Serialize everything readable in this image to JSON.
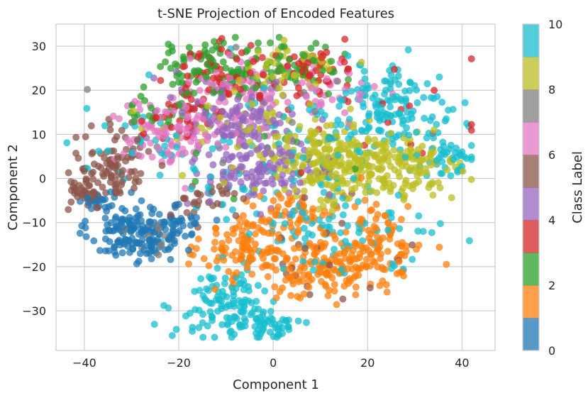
{
  "chart_data": {
    "type": "scatter",
    "title": "t-SNE Projection of Encoded Features",
    "xlabel": "Component 1",
    "ylabel": "Component 2",
    "xlim": [
      -46,
      47
    ],
    "ylim": [
      -39,
      35
    ],
    "xticks": [
      -40,
      -20,
      0,
      20,
      40
    ],
    "yticks": [
      -30,
      -20,
      -10,
      0,
      10,
      20,
      30
    ],
    "xtick_labels": [
      "−40",
      "−20",
      "0",
      "20",
      "40"
    ],
    "ytick_labels": [
      "−30",
      "−20",
      "−10",
      "0",
      "10",
      "20",
      "30"
    ],
    "grid": true,
    "point_alpha": 0.75,
    "colorbar": {
      "label": "Class Label",
      "colormap": "tab10",
      "range": [
        0,
        10
      ],
      "ticks": [
        0,
        2,
        4,
        6,
        8,
        10
      ],
      "tick_labels": [
        "0",
        "2",
        "4",
        "6",
        "8",
        "10"
      ],
      "colors": [
        "#1f77b4",
        "#ff7f0e",
        "#2ca02c",
        "#d62728",
        "#9467bd",
        "#8c564b",
        "#e377c2",
        "#7f7f7f",
        "#bcbd22",
        "#17becf"
      ]
    },
    "series": [
      {
        "class": 0,
        "color": "#1f77b4",
        "clusters": [
          {
            "x": -30,
            "y": -12,
            "sx": 4.5,
            "sy": 3.5,
            "n": 140
          },
          {
            "x": -20,
            "y": -11,
            "sx": 2.5,
            "sy": 2.0,
            "n": 40
          },
          {
            "x": -37,
            "y": -5,
            "sx": 2.0,
            "sy": 1.5,
            "n": 20
          }
        ]
      },
      {
        "class": 1,
        "color": "#ff7f0e",
        "clusters": [
          {
            "x": -5,
            "y": -16,
            "sx": 5.0,
            "sy": 4.0,
            "n": 110
          },
          {
            "x": 10,
            "y": -20,
            "sx": 6.0,
            "sy": 4.0,
            "n": 130
          },
          {
            "x": 22,
            "y": -15,
            "sx": 5.0,
            "sy": 5.0,
            "n": 110
          },
          {
            "x": 5,
            "y": -7,
            "sx": 5.0,
            "sy": 2.0,
            "n": 40
          }
        ]
      },
      {
        "class": 2,
        "color": "#2ca02c",
        "clusters": [
          {
            "x": -15,
            "y": 25,
            "sx": 5.0,
            "sy": 3.0,
            "n": 70
          },
          {
            "x": 2,
            "y": 26,
            "sx": 6.0,
            "sy": 3.0,
            "n": 60
          },
          {
            "x": -24,
            "y": 16,
            "sx": 3.0,
            "sy": 3.0,
            "n": 25
          },
          {
            "x": 0,
            "y": 10,
            "sx": 15.0,
            "sy": 8.0,
            "n": 20
          }
        ]
      },
      {
        "class": 3,
        "color": "#d62728",
        "clusters": [
          {
            "x": -10,
            "y": 24,
            "sx": 6.0,
            "sy": 3.0,
            "n": 60
          },
          {
            "x": 8,
            "y": 24,
            "sx": 5.0,
            "sy": 3.0,
            "n": 50
          },
          {
            "x": -18,
            "y": 15,
            "sx": 5.0,
            "sy": 3.0,
            "n": 40
          },
          {
            "x": 28,
            "y": 12,
            "sx": 10.0,
            "sy": 8.0,
            "n": 20
          }
        ]
      },
      {
        "class": 4,
        "color": "#9467bd",
        "clusters": [
          {
            "x": -5,
            "y": 8,
            "sx": 6.0,
            "sy": 6.0,
            "n": 140
          },
          {
            "x": 0,
            "y": 0,
            "sx": 6.0,
            "sy": 3.0,
            "n": 60
          },
          {
            "x": -12,
            "y": 16,
            "sx": 6.0,
            "sy": 4.0,
            "n": 40
          }
        ]
      },
      {
        "class": 5,
        "color": "#8c564b",
        "clusters": [
          {
            "x": -34,
            "y": 3,
            "sx": 4.0,
            "sy": 4.0,
            "n": 100
          },
          {
            "x": -40,
            "y": -3,
            "sx": 2.0,
            "sy": 2.0,
            "n": 30
          },
          {
            "x": -14,
            "y": -5,
            "sx": 4.0,
            "sy": 2.0,
            "n": 30
          },
          {
            "x": 10,
            "y": -20,
            "sx": 10.0,
            "sy": 5.0,
            "n": 20
          }
        ]
      },
      {
        "class": 6,
        "color": "#e377c2",
        "clusters": [
          {
            "x": -22,
            "y": 10,
            "sx": 6.0,
            "sy": 4.0,
            "n": 90
          },
          {
            "x": -6,
            "y": 20,
            "sx": 6.0,
            "sy": 4.0,
            "n": 70
          },
          {
            "x": 10,
            "y": 18,
            "sx": 5.0,
            "sy": 3.0,
            "n": 30
          }
        ]
      },
      {
        "class": 7,
        "color": "#7f7f7f",
        "clusters": [
          {
            "x": -25,
            "y": -13,
            "sx": 3.0,
            "sy": 2.5,
            "n": 15
          },
          {
            "x": 0,
            "y": 15,
            "sx": 15.0,
            "sy": 8.0,
            "n": 15
          }
        ]
      },
      {
        "class": 8,
        "color": "#bcbd22",
        "clusters": [
          {
            "x": 12,
            "y": 4,
            "sx": 7.0,
            "sy": 5.0,
            "n": 220
          },
          {
            "x": 28,
            "y": 2,
            "sx": 6.0,
            "sy": 4.0,
            "n": 120
          },
          {
            "x": 3,
            "y": 25,
            "sx": 6.0,
            "sy": 3.0,
            "n": 50
          },
          {
            "x": -8,
            "y": 10,
            "sx": 8.0,
            "sy": 4.0,
            "n": 40
          }
        ]
      },
      {
        "class": 9,
        "color": "#17becf",
        "clusters": [
          {
            "x": -10,
            "y": -29,
            "sx": 5.0,
            "sy": 4.0,
            "n": 120
          },
          {
            "x": 0,
            "y": -33,
            "sx": 3.0,
            "sy": 1.5,
            "n": 40
          },
          {
            "x": 25,
            "y": 15,
            "sx": 7.0,
            "sy": 5.0,
            "n": 150
          },
          {
            "x": 38,
            "y": 5,
            "sx": 3.0,
            "sy": 2.0,
            "n": 40
          },
          {
            "x": 10,
            "y": -12,
            "sx": 10.0,
            "sy": 5.0,
            "n": 80
          },
          {
            "x": 0,
            "y": 5,
            "sx": 15.0,
            "sy": 10.0,
            "n": 80
          },
          {
            "x": -28,
            "y": 8,
            "sx": 6.0,
            "sy": 4.0,
            "n": 20
          }
        ]
      }
    ]
  }
}
